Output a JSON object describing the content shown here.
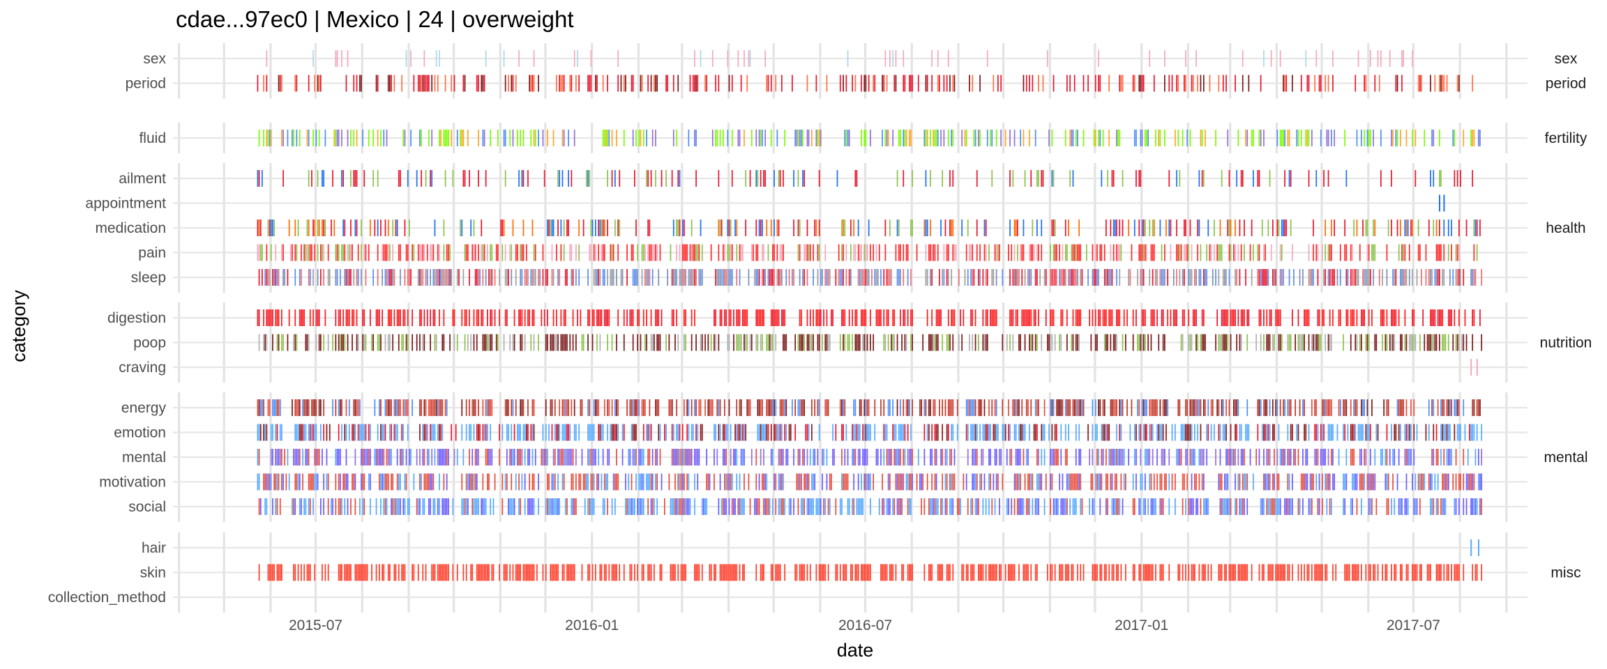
{
  "chart_data": {
    "type": "timeline",
    "title": "cdae...97ec0 | Mexico | 24 | overweight",
    "xlabel": "date",
    "ylabel": "category",
    "x_range": [
      "2015-03-28",
      "2017-09-15"
    ],
    "x_ticks": [
      "2015-07",
      "2016-01",
      "2016-07",
      "2017-01",
      "2017-07"
    ],
    "grid": true,
    "legend": "none",
    "event_date_range": [
      "2015-05-23",
      "2017-08-15"
    ],
    "facets": [
      {
        "name": "period",
        "label": "period",
        "categories": [
          {
            "name": "sex",
            "label": "sex",
            "right_label": "sex",
            "density": 0.07,
            "palette": [
              "#f4a8bb",
              "#f4a8bb",
              "#f4a8bb",
              "#add8e6"
            ]
          },
          {
            "name": "period",
            "label": "period",
            "right_label": "period",
            "density": 0.33,
            "palette": [
              "#e8162e",
              "#e8162e",
              "#7b1a1a",
              "#ff7043"
            ]
          }
        ]
      },
      {
        "name": "fertility",
        "label": "fertility",
        "categories": [
          {
            "name": "fluid",
            "label": "fluid",
            "right_label": "fertility",
            "density": 0.42,
            "palette": [
              "#7cfc00",
              "#7cfc00",
              "#4f8ef7",
              "#ffa726",
              "#9370db"
            ]
          }
        ]
      },
      {
        "name": "health",
        "label": "health",
        "categories": [
          {
            "name": "ailment",
            "label": "ailment",
            "density": 0.22,
            "palette": [
              "#e8162e",
              "#e8162e",
              "#1e6ff7",
              "#8bc34a"
            ]
          },
          {
            "name": "appointment",
            "label": "appointment",
            "density": 0.0,
            "palette": [
              "#1e6ff7"
            ]
          },
          {
            "name": "medication",
            "label": "medication",
            "right_label": "health",
            "density": 0.33,
            "palette": [
              "#e8162e",
              "#e8162e",
              "#ff6d00",
              "#1e6ff7",
              "#8bc34a"
            ]
          },
          {
            "name": "pain",
            "label": "pain",
            "density": 0.55,
            "palette": [
              "#ff2a2a",
              "#ff2a2a",
              "#f4a8bb",
              "#8bc34a"
            ]
          },
          {
            "name": "sleep",
            "label": "sleep",
            "density": 0.6,
            "palette": [
              "#ee6e73",
              "#5b8ef0",
              "#7b8fb8",
              "#e8162e",
              "#a0a0a0"
            ]
          }
        ]
      },
      {
        "name": "nutrition",
        "label": "nutrition",
        "categories": [
          {
            "name": "digestion",
            "label": "digestion",
            "density": 0.55,
            "palette": [
              "#ff1a1a",
              "#ff1a1a",
              "#e8162e"
            ]
          },
          {
            "name": "poop",
            "label": "poop",
            "right_label": "nutrition",
            "density": 0.55,
            "palette": [
              "#7b1a1a",
              "#7b1a1a",
              "#b0b0b0",
              "#8bc34a"
            ]
          },
          {
            "name": "craving",
            "label": "craving",
            "density": 0.0,
            "palette": [
              "#f4a8bb"
            ]
          }
        ]
      },
      {
        "name": "mental",
        "label": "mental",
        "categories": [
          {
            "name": "energy",
            "label": "energy",
            "density": 0.6,
            "palette": [
              "#c0392b",
              "#c0392b",
              "#e74c3c",
              "#4f8ef7",
              "#7b1a1a"
            ]
          },
          {
            "name": "emotion",
            "label": "emotion",
            "density": 0.6,
            "palette": [
              "#55aaff",
              "#55aaff",
              "#55aaff",
              "#8b1a1a",
              "#e8162e"
            ]
          },
          {
            "name": "mental",
            "label": "mental",
            "right_label": "mental",
            "density": 0.6,
            "palette": [
              "#6a5cff",
              "#6a5cff",
              "#55aaff",
              "#e74c3c",
              "#9370db"
            ]
          },
          {
            "name": "motivation",
            "label": "motivation",
            "density": 0.6,
            "palette": [
              "#e74c3c",
              "#e74c3c",
              "#6a5cff",
              "#55aaff"
            ]
          },
          {
            "name": "social",
            "label": "social",
            "density": 0.6,
            "palette": [
              "#55aaff",
              "#55aaff",
              "#6a5cff",
              "#e74c3c"
            ]
          }
        ]
      },
      {
        "name": "misc",
        "label": "misc",
        "categories": [
          {
            "name": "hair",
            "label": "hair",
            "density": 0.0,
            "palette": [
              "#55aaff"
            ]
          },
          {
            "name": "skin",
            "label": "skin",
            "right_label": "misc",
            "density": 0.62,
            "palette": [
              "#ff3c28"
            ]
          },
          {
            "name": "collection_method",
            "label": "collection_method",
            "density": 0.0,
            "palette": [
              "#999999"
            ]
          }
        ]
      }
    ],
    "sparse_events": [
      {
        "category": "appointment",
        "dates": [
          "2017-07-18",
          "2017-07-21"
        ]
      },
      {
        "category": "craving",
        "dates": [
          "2017-08-08",
          "2017-08-12"
        ]
      },
      {
        "category": "hair",
        "dates": [
          "2017-08-08",
          "2017-08-13"
        ]
      }
    ]
  }
}
